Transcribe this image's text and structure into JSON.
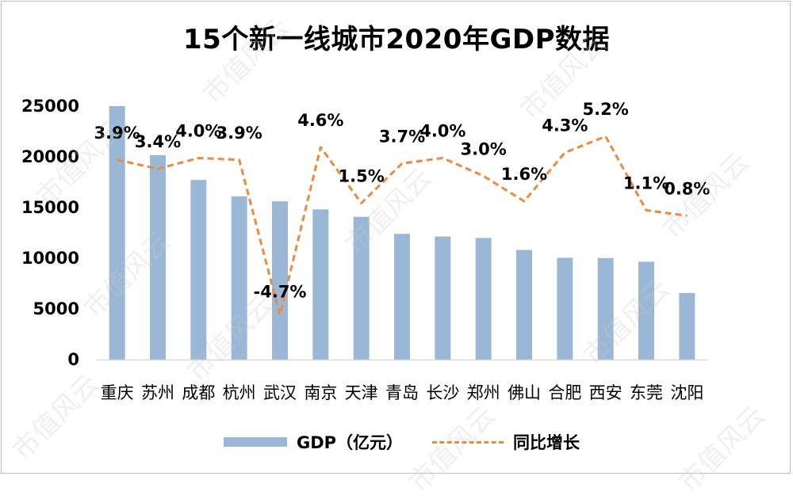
{
  "chart_data": {
    "type": "bar",
    "title": "15个新一线城市2020年GDP数据",
    "categories": [
      "重庆",
      "苏州",
      "成都",
      "杭州",
      "武汉",
      "南京",
      "天津",
      "青岛",
      "长沙",
      "郑州",
      "佛山",
      "合肥",
      "西安",
      "东莞",
      "沈阳"
    ],
    "series": [
      {
        "name": "GDP（亿元）",
        "type": "bar",
        "color": "#9ab8d6",
        "values": [
          25003,
          20170,
          17717,
          16106,
          15616,
          14818,
          14084,
          12401,
          12143,
          12003,
          10816,
          10046,
          10020,
          9650,
          6572
        ]
      },
      {
        "name": "同比增长",
        "type": "line",
        "style": "dashed",
        "color": "#ee8a3e",
        "values": [
          3.9,
          3.4,
          4.0,
          3.9,
          -4.7,
          4.6,
          1.5,
          3.7,
          4.0,
          3.0,
          1.6,
          4.3,
          5.2,
          1.1,
          0.8
        ],
        "labels": [
          "3.9%",
          "3.4%",
          "4.0%",
          "3.9%",
          "-4.7%",
          "4.6%",
          "1.5%",
          "3.7%",
          "4.0%",
          "3.0%",
          "1.6%",
          "4.3%",
          "5.2%",
          "1.1%",
          "0.8%"
        ]
      }
    ],
    "ylim": [
      0,
      25000
    ],
    "yticks": [
      "0",
      "5000",
      "10000",
      "15000",
      "20000",
      "25000"
    ],
    "grid": false,
    "legend_position": "bottom"
  },
  "watermark": "市值风云"
}
